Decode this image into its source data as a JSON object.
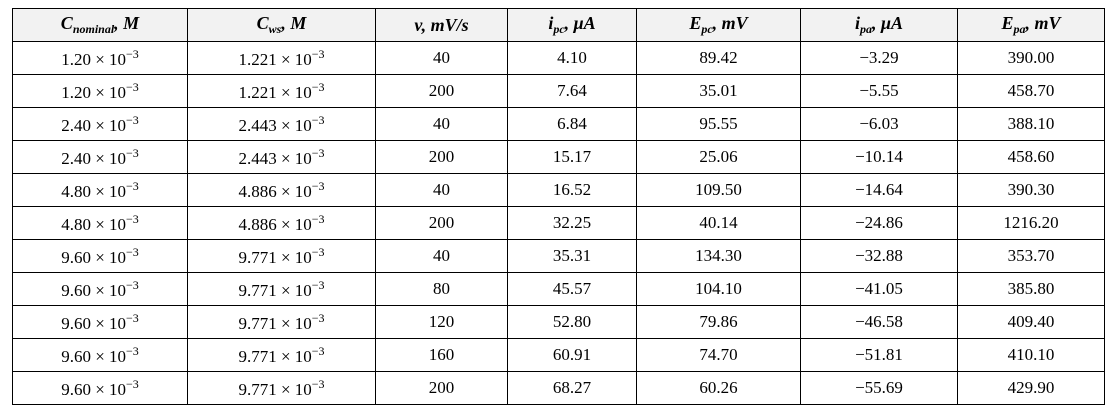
{
  "table": {
    "header": [
      {
        "main": "C",
        "sub": "nominal",
        "rest": ", M"
      },
      {
        "main": "C",
        "sub": "ws",
        "rest": ", M"
      },
      {
        "main": "v, mV/s"
      },
      {
        "main": "i",
        "sub": "pc",
        "rest": ", μA"
      },
      {
        "main": "E",
        "sub": "pc",
        "rest": ", mV"
      },
      {
        "main": "i",
        "sub": "pa",
        "rest": ", μA"
      },
      {
        "main": "E",
        "sub": "pa",
        "rest": ", mV"
      }
    ],
    "rows": [
      [
        {
          "base": "1.20 × 10",
          "exp": "−3"
        },
        {
          "base": "1.221 × 10",
          "exp": "−3"
        },
        "40",
        "4.10",
        "89.42",
        "−3.29",
        "390.00"
      ],
      [
        {
          "base": "1.20 × 10",
          "exp": "−3"
        },
        {
          "base": "1.221 × 10",
          "exp": "−3"
        },
        "200",
        "7.64",
        "35.01",
        "−5.55",
        "458.70"
      ],
      [
        {
          "base": "2.40 × 10",
          "exp": "−3"
        },
        {
          "base": "2.443 × 10",
          "exp": "−3"
        },
        "40",
        "6.84",
        "95.55",
        "−6.03",
        "388.10"
      ],
      [
        {
          "base": "2.40 × 10",
          "exp": "−3"
        },
        {
          "base": "2.443 × 10",
          "exp": "−3"
        },
        "200",
        "15.17",
        "25.06",
        "−10.14",
        "458.60"
      ],
      [
        {
          "base": "4.80 × 10",
          "exp": "−3"
        },
        {
          "base": "4.886 × 10",
          "exp": "−3"
        },
        "40",
        "16.52",
        "109.50",
        "−14.64",
        "390.30"
      ],
      [
        {
          "base": "4.80 × 10",
          "exp": "−3"
        },
        {
          "base": "4.886 × 10",
          "exp": "−3"
        },
        "200",
        "32.25",
        "40.14",
        "−24.86",
        "1216.20"
      ],
      [
        {
          "base": "9.60 × 10",
          "exp": "−3"
        },
        {
          "base": "9.771 × 10",
          "exp": "−3"
        },
        "40",
        "35.31",
        "134.30",
        "−32.88",
        "353.70"
      ],
      [
        {
          "base": "9.60 × 10",
          "exp": "−3"
        },
        {
          "base": "9.771 × 10",
          "exp": "−3"
        },
        "80",
        "45.57",
        "104.10",
        "−41.05",
        "385.80"
      ],
      [
        {
          "base": "9.60 × 10",
          "exp": "−3"
        },
        {
          "base": "9.771 × 10",
          "exp": "−3"
        },
        "120",
        "52.80",
        "79.86",
        "−46.58",
        "409.40"
      ],
      [
        {
          "base": "9.60 × 10",
          "exp": "−3"
        },
        {
          "base": "9.771 × 10",
          "exp": "−3"
        },
        "160",
        "60.91",
        "74.70",
        "−51.81",
        "410.10"
      ],
      [
        {
          "base": "9.60 × 10",
          "exp": "−3"
        },
        {
          "base": "9.771 × 10",
          "exp": "−3"
        },
        "200",
        "68.27",
        "60.26",
        "−55.69",
        "429.90"
      ]
    ]
  }
}
